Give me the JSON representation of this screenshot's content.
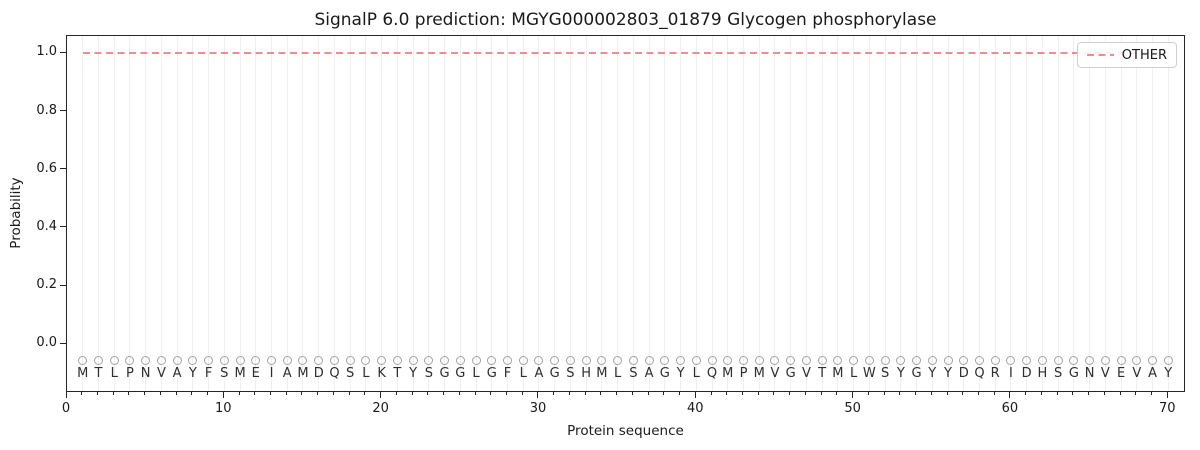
{
  "title": "SignalP 6.0 prediction: MGYG000002803_01879 Glycogen phosphorylase",
  "axes": {
    "xlabel": "Protein sequence",
    "ylabel": "Probability",
    "ytick_labels": [
      "0.0",
      "0.2",
      "0.4",
      "0.6",
      "0.8",
      "1.0"
    ],
    "ytick_values": [
      0.0,
      0.2,
      0.4,
      0.6,
      0.8,
      1.0
    ],
    "xtick_values": [
      0,
      10,
      20,
      30,
      40,
      50,
      60,
      70
    ]
  },
  "legend": {
    "position": "upper right",
    "items": [
      {
        "label": "OTHER",
        "line_style": "dashed",
        "color": "#f58a8a"
      }
    ]
  },
  "colors": {
    "line_other": "#f58a8a",
    "gridline": "#efefef",
    "marker_edge": "#a3a3a3",
    "letter": "#2e2e2e",
    "spine": "#262626",
    "background": "#ffffff"
  },
  "chart_data": {
    "type": "line",
    "title": "SignalP 6.0 prediction: MGYG000002803_01879 Glycogen phosphorylase",
    "xlabel": "Protein sequence",
    "ylabel": "Probability",
    "xlim": [
      0,
      71
    ],
    "ylim": [
      -0.161,
      1.06
    ],
    "grid": "vertical gridline at every residue position",
    "legend_position": "upper right",
    "sequence": "MTLPNVAYFSMEIAMDQSLKTYSGGLGFLAGSHMLSAGYLQMPMVGVTMLWSYGYYDQRIDHSGNVEVAY",
    "x": [
      1,
      2,
      3,
      4,
      5,
      6,
      7,
      8,
      9,
      10,
      11,
      12,
      13,
      14,
      15,
      16,
      17,
      18,
      19,
      20,
      21,
      22,
      23,
      24,
      25,
      26,
      27,
      28,
      29,
      30,
      31,
      32,
      33,
      34,
      35,
      36,
      37,
      38,
      39,
      40,
      41,
      42,
      43,
      44,
      45,
      46,
      47,
      48,
      49,
      50,
      51,
      52,
      53,
      54,
      55,
      56,
      57,
      58,
      59,
      60,
      61,
      62,
      63,
      64,
      65,
      66,
      67,
      68,
      69,
      70
    ],
    "series": [
      {
        "name": "OTHER",
        "style": "dashed",
        "color": "#f58a8a",
        "values": [
          1.0,
          1.0,
          1.0,
          1.0,
          1.0,
          1.0,
          1.0,
          1.0,
          1.0,
          1.0,
          1.0,
          1.0,
          1.0,
          1.0,
          1.0,
          1.0,
          1.0,
          1.0,
          1.0,
          1.0,
          1.0,
          1.0,
          1.0,
          1.0,
          1.0,
          1.0,
          1.0,
          1.0,
          1.0,
          1.0,
          1.0,
          1.0,
          1.0,
          1.0,
          1.0,
          1.0,
          1.0,
          1.0,
          1.0,
          1.0,
          1.0,
          1.0,
          1.0,
          1.0,
          1.0,
          1.0,
          1.0,
          1.0,
          1.0,
          1.0,
          1.0,
          1.0,
          1.0,
          1.0,
          1.0,
          1.0,
          1.0,
          1.0,
          1.0,
          1.0,
          1.0,
          1.0,
          1.0,
          1.0,
          1.0,
          1.0,
          1.0,
          1.0,
          1.0,
          1.0
        ]
      }
    ],
    "marker_row": {
      "symbol": "open-circle",
      "y": -0.055
    },
    "letter_row_y": -0.104
  }
}
